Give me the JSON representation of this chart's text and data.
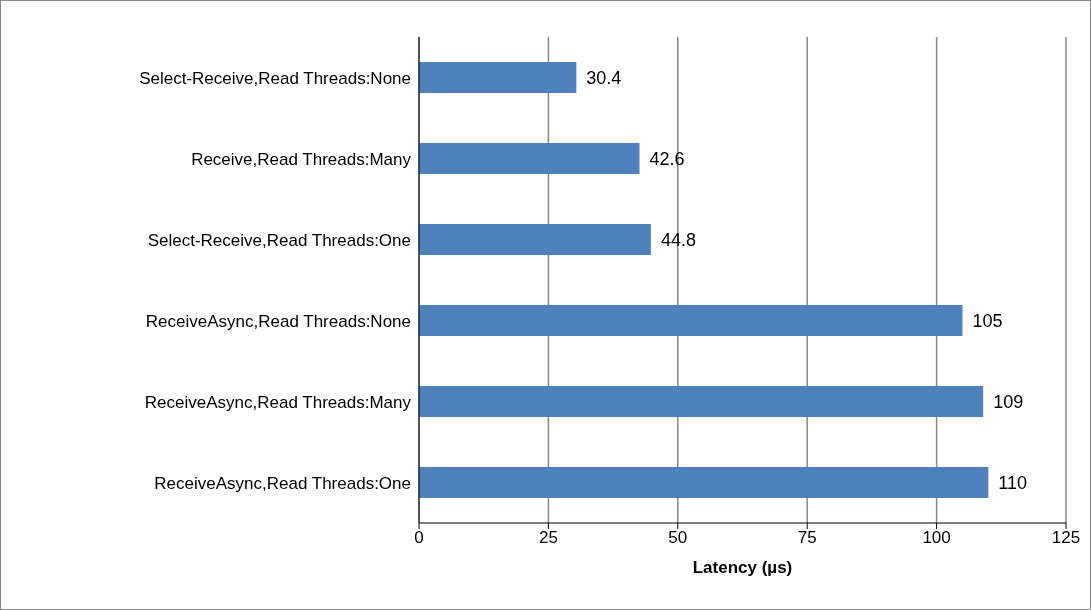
{
  "chart_data": {
    "type": "bar",
    "orientation": "horizontal",
    "xlabel": "Latency (µs)",
    "categories": [
      "Select-Receive,Read Threads:None",
      "Receive,Read Threads:Many",
      "Select-Receive,Read Threads:One",
      "ReceiveAsync,Read Threads:None",
      "ReceiveAsync,Read Threads:Many",
      "ReceiveAsync,Read Threads:One"
    ],
    "values": [
      30.4,
      42.6,
      44.8,
      105,
      109,
      110
    ],
    "color": "#4f81bd",
    "xlim": [
      0,
      125
    ],
    "xticks": [
      0,
      25,
      50,
      75,
      100,
      125
    ],
    "grid": "x",
    "data_labels": true
  }
}
